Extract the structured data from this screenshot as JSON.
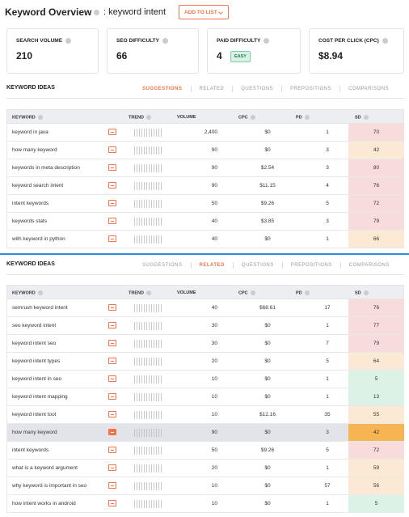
{
  "header": {
    "title": "Keyword Overview",
    "keyword": ": keyword intent",
    "button": "ADD TO LIST"
  },
  "metrics": [
    {
      "label": "SEARCH VOLUME",
      "value": 210
    },
    {
      "label": "SEO DIFFICULTY",
      "value": 66
    },
    {
      "label": "PAID DIFFICULTY",
      "value": 4,
      "badge": "EASY"
    },
    {
      "label": "COST PER CLICK (CPC)",
      "value": "$8.94"
    }
  ],
  "sections": [
    {
      "title": "KEYWORD IDEAS",
      "tabs": [
        {
          "label": "SUGGESTIONS",
          "active": true
        },
        {
          "label": "RELATED",
          "active": false
        },
        {
          "label": "QUESTIONS",
          "active": false
        },
        {
          "label": "PREPOSITIONS",
          "active": false
        },
        {
          "label": "COMPARISONS",
          "active": false
        }
      ],
      "columns": [
        "KEYWORD",
        "TREND",
        "VOLUME",
        "CPC",
        "PD",
        "SD"
      ],
      "rows": [
        {
          "keyword": "keyword in java",
          "volume": "2,400",
          "cpc": "$0",
          "pd": 1,
          "sd": 70
        },
        {
          "keyword": "how many keyword",
          "volume": 90,
          "cpc": "$0",
          "pd": 3,
          "sd": 42
        },
        {
          "keyword": "keywords in meta description",
          "volume": 90,
          "cpc": "$2.54",
          "pd": 3,
          "sd": 80
        },
        {
          "keyword": "keyword search intent",
          "volume": 90,
          "cpc": "$11.15",
          "pd": 4,
          "sd": 76
        },
        {
          "keyword": "intent keywords",
          "volume": 50,
          "cpc": "$9.26",
          "pd": 5,
          "sd": 72
        },
        {
          "keyword": "keywords stats",
          "volume": 40,
          "cpc": "$3.85",
          "pd": 3,
          "sd": 79
        },
        {
          "keyword": "with keyword in python",
          "volume": 40,
          "cpc": "$0",
          "pd": 1,
          "sd": 66
        }
      ]
    },
    {
      "title": "KEYWORD IDEAS",
      "tabs": [
        {
          "label": "SUGGESTIONS",
          "active": false
        },
        {
          "label": "RELATED",
          "active": true
        },
        {
          "label": "QUESTIONS",
          "active": false
        },
        {
          "label": "PREPOSITIONS",
          "active": false
        },
        {
          "label": "COMPARISONS",
          "active": false
        }
      ],
      "columns": [
        "KEYWORD",
        "TREND",
        "VOLUME",
        "CPC",
        "PD",
        "SD"
      ],
      "rows": [
        {
          "keyword": "semrush keyword intent",
          "volume": 40,
          "cpc": "$68.61",
          "pd": 17,
          "sd": 76
        },
        {
          "keyword": "seo keyword intent",
          "volume": 30,
          "cpc": "$0",
          "pd": 1,
          "sd": 77
        },
        {
          "keyword": "keyword intent seo",
          "volume": 30,
          "cpc": "$0",
          "pd": 7,
          "sd": 79
        },
        {
          "keyword": "keyword intent types",
          "volume": 20,
          "cpc": "$0",
          "pd": 5,
          "sd": 64
        },
        {
          "keyword": "keyword intent in seo",
          "volume": 10,
          "cpc": "$0",
          "pd": 1,
          "sd": 5
        },
        {
          "keyword": "keyword intent mapping",
          "volume": 10,
          "cpc": "$0",
          "pd": 1,
          "sd": 13
        },
        {
          "keyword": "keyword intent tool",
          "volume": 10,
          "cpc": "$12.16",
          "pd": 35,
          "sd": 55
        },
        {
          "keyword": "how many keyword",
          "volume": 90,
          "cpc": "$0",
          "pd": 3,
          "sd": 42,
          "highlighted": true
        },
        {
          "keyword": "intent keywords",
          "volume": 50,
          "cpc": "$9.26",
          "pd": 5,
          "sd": 72
        },
        {
          "keyword": "what is a keyword argument",
          "volume": 20,
          "cpc": "$0",
          "pd": 1,
          "sd": 59
        },
        {
          "keyword": "why keyword is important in seo",
          "volume": 10,
          "cpc": "$0",
          "pd": 57,
          "sd": 56
        },
        {
          "keyword": "how intent works in android",
          "volume": 10,
          "cpc": "$0",
          "pd": 1,
          "sd": 5
        }
      ]
    }
  ]
}
